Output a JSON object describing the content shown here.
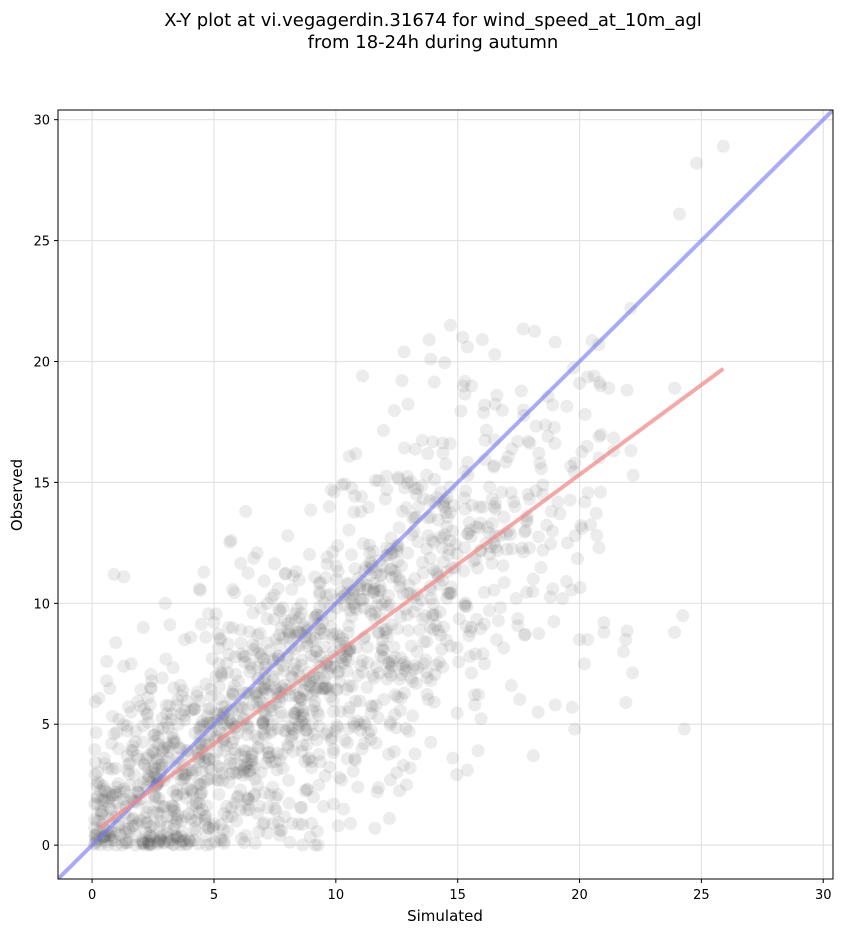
{
  "chart_data": {
    "type": "scatter",
    "title": [
      "X-Y plot at vi.vegagerdin.31674 for wind_speed_at_10m_agl",
      "from 18-24h during autumn"
    ],
    "xlabel": "Simulated",
    "ylabel": "Observed",
    "xlim": [
      -1.4,
      30.4
    ],
    "ylim": [
      -1.4,
      30.4
    ],
    "xticks": [
      0,
      5,
      10,
      15,
      20,
      25,
      30
    ],
    "yticks": [
      0,
      5,
      10,
      15,
      20,
      25,
      30
    ],
    "grid": true,
    "colors": {
      "points": "#444444",
      "identity_line": "#7b7ff0",
      "fit_line": "#f08c8c"
    },
    "identity_line": {
      "x": [
        -1.4,
        30.4
      ],
      "y": [
        -1.4,
        30.4
      ]
    },
    "fit_line": {
      "x": [
        0.3,
        25.9
      ],
      "y": [
        0.7,
        19.7
      ]
    },
    "point_clusters": [
      {
        "cx": 3.0,
        "cy": 2.5,
        "sx": 2.0,
        "sy": 2.0,
        "n": 420
      },
      {
        "cx": 7.5,
        "cy": 5.8,
        "sx": 2.4,
        "sy": 2.6,
        "n": 480
      },
      {
        "cx": 11.5,
        "cy": 9.5,
        "sx": 2.6,
        "sy": 3.2,
        "n": 360
      },
      {
        "cx": 15.5,
        "cy": 12.5,
        "sx": 2.6,
        "sy": 3.5,
        "n": 170
      },
      {
        "cx": 19.0,
        "cy": 14.0,
        "sx": 2.2,
        "sy": 3.8,
        "n": 55
      }
    ],
    "points": [
      [
        25.9,
        28.9
      ],
      [
        24.8,
        28.2
      ],
      [
        24.1,
        26.1
      ],
      [
        22.1,
        22.2
      ],
      [
        19.0,
        20.8
      ],
      [
        14.7,
        21.5
      ],
      [
        15.2,
        21.0
      ],
      [
        15.4,
        20.6
      ],
      [
        12.8,
        20.4
      ],
      [
        11.1,
        19.4
      ],
      [
        20.6,
        19.4
      ],
      [
        21.2,
        18.9
      ],
      [
        23.9,
        18.9
      ],
      [
        20.0,
        19.1
      ],
      [
        13.9,
        20.1
      ],
      [
        0.9,
        11.2
      ],
      [
        1.3,
        11.1
      ],
      [
        3.0,
        10.0
      ],
      [
        4.4,
        10.6
      ],
      [
        5.7,
        12.6
      ],
      [
        6.3,
        13.8
      ],
      [
        0.6,
        7.6
      ],
      [
        0.6,
        6.8
      ],
      [
        1.3,
        7.4
      ],
      [
        1.6,
        7.5
      ],
      [
        2.1,
        9.0
      ],
      [
        3.8,
        8.5
      ],
      [
        1.1,
        5.2
      ],
      [
        1.6,
        5.5
      ],
      [
        0.9,
        4.6
      ],
      [
        20.8,
        12.3
      ],
      [
        21.0,
        9.2
      ],
      [
        21.0,
        8.8
      ],
      [
        21.9,
        8.5
      ],
      [
        21.8,
        8.0
      ],
      [
        20.2,
        7.5
      ],
      [
        20.0,
        8.5
      ],
      [
        19.7,
        5.7
      ],
      [
        19.8,
        4.8
      ],
      [
        19.0,
        5.8
      ],
      [
        21.9,
        5.9
      ],
      [
        23.9,
        8.8
      ],
      [
        24.3,
        4.8
      ],
      [
        18.1,
        3.7
      ],
      [
        18.3,
        5.5
      ],
      [
        17.2,
        6.6
      ],
      [
        15.4,
        3.1
      ],
      [
        15.7,
        5.8
      ],
      [
        14.8,
        3.6
      ],
      [
        18.9,
        10.6
      ],
      [
        19.3,
        10.2
      ],
      [
        20.8,
        16.9
      ],
      [
        21.4,
        16.3
      ],
      [
        22.2,
        15.3
      ],
      [
        19.8,
        15.8
      ],
      [
        20.1,
        13.1
      ],
      [
        19.2,
        13.7
      ],
      [
        17.7,
        18.0
      ],
      [
        18.9,
        18.2
      ],
      [
        17.9,
        16.7
      ],
      [
        16.1,
        18.2
      ],
      [
        16.8,
        14.6
      ],
      [
        17.3,
        14.2
      ],
      [
        16.5,
        12.5
      ],
      [
        18.5,
        12.2
      ],
      [
        18.1,
        11.0
      ],
      [
        17.4,
        10.2
      ],
      [
        16.3,
        9.7
      ],
      [
        16.6,
        8.5
      ],
      [
        16.1,
        7.5
      ],
      [
        15.5,
        7.8
      ],
      [
        13.9,
        6.8
      ],
      [
        13.0,
        4.7
      ],
      [
        12.5,
        3.0
      ],
      [
        12.9,
        2.5
      ],
      [
        11.7,
        2.2
      ],
      [
        12.2,
        1.1
      ],
      [
        11.6,
        0.7
      ],
      [
        10.6,
        0.9
      ],
      [
        10.1,
        0.8
      ],
      [
        9.0,
        0.9
      ],
      [
        8.2,
        0.9
      ],
      [
        7.7,
        0.4
      ],
      [
        9.5,
        1.6
      ],
      [
        10.9,
        2.4
      ],
      [
        6.3,
        0.4
      ],
      [
        5.3,
        0.2
      ],
      [
        4.7,
        0.0
      ],
      [
        4.2,
        0.2
      ],
      [
        3.5,
        0.3
      ],
      [
        2.8,
        0.2
      ],
      [
        2.1,
        0.1
      ],
      [
        1.4,
        0.2
      ],
      [
        0.7,
        0.4
      ],
      [
        0.3,
        1.0
      ],
      [
        0.2,
        2.0
      ],
      [
        0.5,
        3.6
      ],
      [
        0.8,
        4.2
      ],
      [
        1.8,
        4.7
      ],
      [
        2.4,
        6.5
      ],
      [
        5.0,
        9.2
      ],
      [
        5.6,
        9.0
      ],
      [
        6.1,
        8.9
      ],
      [
        6.6,
        9.6
      ],
      [
        5.2,
        7.5
      ]
    ]
  }
}
